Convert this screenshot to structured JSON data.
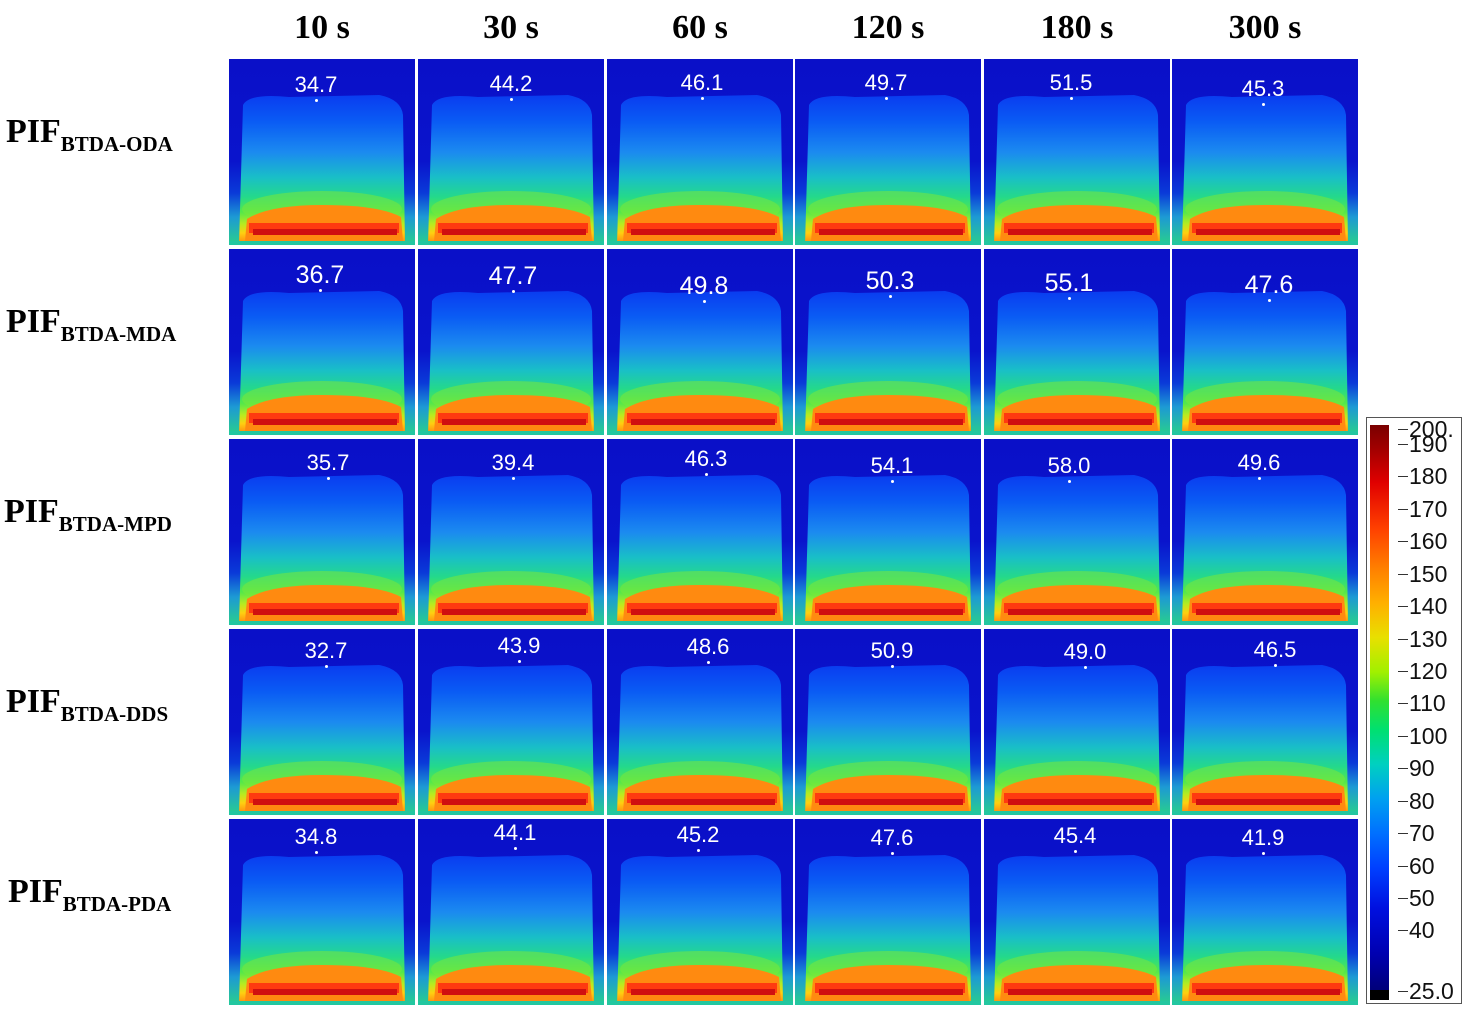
{
  "time_points": [
    "10 s",
    "30 s",
    "60 s",
    "120 s",
    "180 s",
    "300 s"
  ],
  "rows": [
    {
      "main": "PIF",
      "sub": "BTDA-ODA",
      "temps": [
        "34.7",
        "44.2",
        "46.1",
        "49.7",
        "51.5",
        "45.3"
      ]
    },
    {
      "main": "PIF",
      "sub": "BTDA-MDA",
      "temps": [
        "36.7",
        "47.7",
        "49.8",
        "50.3",
        "55.1",
        "47.6"
      ]
    },
    {
      "main": "PIF",
      "sub": "BTDA-MPD",
      "temps": [
        "35.7",
        "39.4",
        "46.3",
        "54.1",
        "58.0",
        "49.6"
      ]
    },
    {
      "main": "PIF",
      "sub": "BTDA-DDS",
      "temps": [
        "32.7",
        "43.9",
        "48.6",
        "50.9",
        "49.0",
        "46.5"
      ]
    },
    {
      "main": "PIF",
      "sub": "BTDA-PDA",
      "temps": [
        "34.8",
        "44.1",
        "45.2",
        "47.6",
        "45.4",
        "41.9"
      ]
    }
  ],
  "colorbar": {
    "max_label": "200.",
    "min_label": "25.0",
    "ticks": [
      "190",
      "180",
      "170",
      "160",
      "150",
      "140",
      "130",
      "120",
      "110",
      "100",
      "90",
      "80",
      "70",
      "60",
      "50",
      "40"
    ]
  }
}
